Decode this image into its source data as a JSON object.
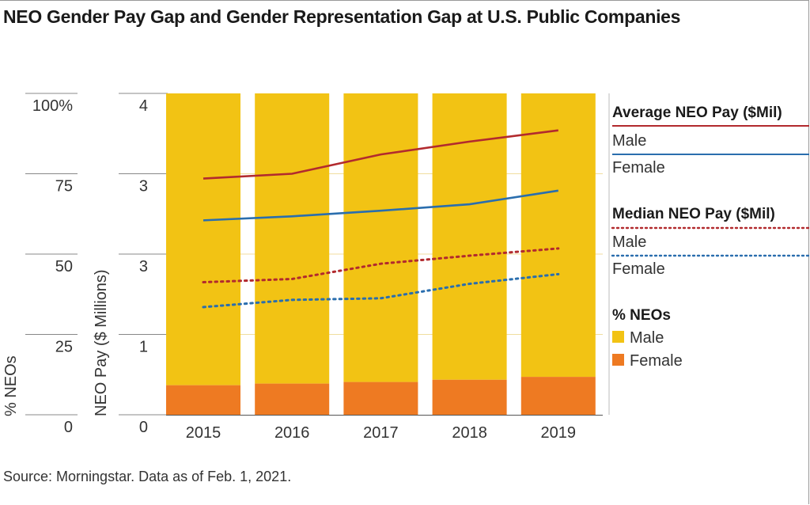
{
  "title": "NEO Gender Pay Gap and Gender Representation Gap at U.S. Public Companies",
  "source": "Source: Morningstar. Data as of Feb. 1, 2021.",
  "colors": {
    "male_bar": "#F2C314",
    "female_bar": "#EE7A22",
    "male_line": "#B22A2E",
    "female_line": "#2A6EAE"
  },
  "chart_data": {
    "type": "bar",
    "categories": [
      "2015",
      "2016",
      "2017",
      "2018",
      "2019"
    ],
    "pct_axis": {
      "label": "% NEOs",
      "ticks": [
        "100%",
        "75",
        "50",
        "25",
        "0"
      ],
      "ylim": [
        0,
        100
      ]
    },
    "pay_axis": {
      "label": "NEO Pay ($ Millions)",
      "ticks": [
        "4",
        "3",
        "3",
        "1",
        "0"
      ],
      "ylim": [
        0,
        4
      ]
    },
    "bars": [
      {
        "name": "Male",
        "values": [
          90.8,
          90.3,
          89.8,
          89.1,
          88.2
        ]
      },
      {
        "name": "Female",
        "values": [
          9.2,
          9.7,
          10.2,
          10.9,
          11.8
        ]
      }
    ],
    "lines": [
      {
        "name": "Average NEO Pay Male",
        "style": "solid",
        "values": [
          2.94,
          3.0,
          3.24,
          3.4,
          3.54
        ]
      },
      {
        "name": "Average NEO Pay Female",
        "style": "solid",
        "values": [
          2.42,
          2.47,
          2.54,
          2.62,
          2.79
        ]
      },
      {
        "name": "Median NEO Pay Male",
        "style": "dotted",
        "values": [
          1.65,
          1.69,
          1.88,
          1.98,
          2.07
        ]
      },
      {
        "name": "Median NEO Pay Female",
        "style": "dotted",
        "values": [
          1.34,
          1.43,
          1.45,
          1.63,
          1.75
        ]
      }
    ],
    "grid": true,
    "legend": {
      "position": "right",
      "groups": [
        {
          "header": "Average NEO Pay ($Mil)",
          "items": [
            "Male",
            "Female"
          ]
        },
        {
          "header": "Median NEO Pay ($Mil)",
          "items": [
            "Male",
            "Female"
          ]
        },
        {
          "header": "% NEOs",
          "items": [
            "Male",
            "Female"
          ]
        }
      ]
    }
  }
}
